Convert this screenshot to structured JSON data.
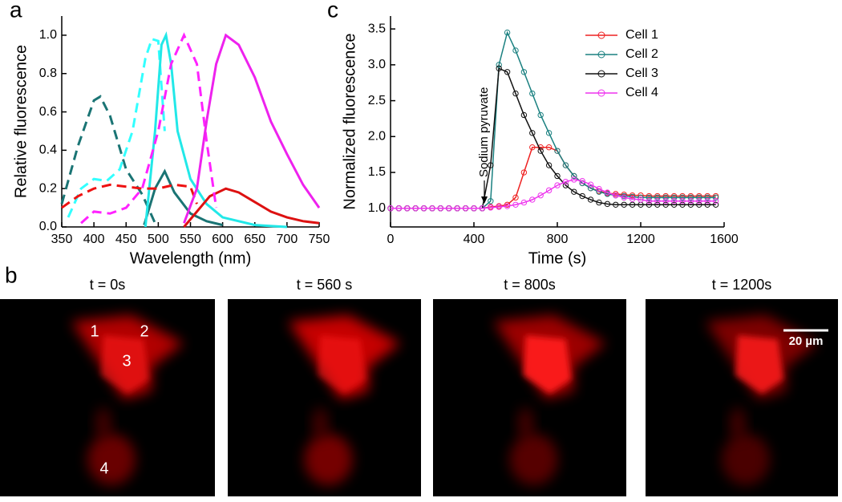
{
  "panel_labels": [
    "a",
    "b",
    "c"
  ],
  "chart_data": [
    {
      "type": "line",
      "xlabel": "Wavelength (nm)",
      "ylabel": "Relative fluorescence",
      "xlim": [
        350,
        750
      ],
      "ylim": [
        0,
        1.1
      ],
      "xticks": [
        350,
        400,
        450,
        500,
        550,
        600,
        650,
        700,
        750
      ],
      "yticks": [
        {
          "value": 0,
          "label": "0.0"
        },
        0.2,
        0.4,
        0.6,
        0.8,
        {
          "value": 1,
          "label": "1.0"
        }
      ],
      "series": [
        {
          "color": "#1a7474",
          "dashed": true,
          "x": [
            350,
            375,
            400,
            410,
            425,
            450,
            475,
            495
          ],
          "values": [
            0.12,
            0.42,
            0.66,
            0.68,
            0.58,
            0.3,
            0.17,
            0.02
          ]
        },
        {
          "color": "#1a7474",
          "dashed": false,
          "x": [
            478,
            495,
            510,
            525,
            550,
            575,
            600
          ],
          "values": [
            0.01,
            0.2,
            0.29,
            0.18,
            0.07,
            0.03,
            0.01
          ]
        },
        {
          "color": "#33ffff",
          "dashed": true,
          "x": [
            360,
            380,
            400,
            420,
            440,
            460,
            480,
            490,
            500,
            510
          ],
          "values": [
            0.05,
            0.2,
            0.25,
            0.24,
            0.3,
            0.5,
            0.88,
            0.98,
            0.97,
            0.5
          ]
        },
        {
          "color": "#22e8e8",
          "dashed": false,
          "x": [
            480,
            495,
            505,
            512,
            520,
            530,
            550,
            575,
            600,
            650,
            700
          ],
          "values": [
            0,
            0.5,
            0.95,
            1.0,
            0.85,
            0.5,
            0.25,
            0.12,
            0.05,
            0.01,
            0
          ]
        },
        {
          "color": "#ee1111",
          "dashed": true,
          "x": [
            350,
            375,
            400,
            425,
            450,
            475,
            500,
            525,
            550,
            560
          ],
          "values": [
            0.1,
            0.16,
            0.2,
            0.22,
            0.21,
            0.2,
            0.2,
            0.22,
            0.21,
            0.12
          ]
        },
        {
          "color": "#dd1111",
          "dashed": false,
          "x": [
            540,
            560,
            580,
            605,
            625,
            650,
            675,
            700,
            725,
            750
          ],
          "values": [
            0,
            0.08,
            0.16,
            0.2,
            0.18,
            0.13,
            0.08,
            0.05,
            0.03,
            0.02
          ]
        },
        {
          "color": "#ff22ff",
          "dashed": true,
          "x": [
            380,
            400,
            425,
            450,
            475,
            500,
            520,
            540,
            560,
            575,
            590
          ],
          "values": [
            0.02,
            0.08,
            0.07,
            0.1,
            0.2,
            0.5,
            0.85,
            1.0,
            0.85,
            0.45,
            0.1
          ]
        },
        {
          "color": "#ee22ee",
          "dashed": false,
          "x": [
            540,
            560,
            575,
            590,
            605,
            625,
            650,
            675,
            700,
            725,
            750
          ],
          "values": [
            0.02,
            0.2,
            0.55,
            0.85,
            1.0,
            0.95,
            0.78,
            0.55,
            0.38,
            0.22,
            0.1
          ]
        }
      ]
    },
    {
      "type": "line",
      "xlabel": "Time (s)",
      "ylabel": "Normalized fluorescence",
      "xlim": [
        0,
        1600
      ],
      "ylim": [
        0.74,
        3.68
      ],
      "xticks": [
        0,
        400,
        800,
        1200,
        1600
      ],
      "yticks": [
        {
          "value": 1,
          "label": "1.0"
        },
        1.5,
        {
          "value": 2,
          "label": "2.0"
        },
        2.5,
        {
          "value": 3,
          "label": "3.0"
        },
        3.5
      ],
      "annotation": {
        "text": "Sodium pyruvate",
        "x": 450,
        "y": 1.03
      },
      "x": [
        0,
        40,
        80,
        120,
        160,
        200,
        240,
        280,
        320,
        360,
        400,
        440,
        480,
        520,
        560,
        600,
        640,
        680,
        720,
        760,
        800,
        840,
        880,
        920,
        960,
        1000,
        1040,
        1080,
        1120,
        1160,
        1200,
        1240,
        1280,
        1320,
        1360,
        1400,
        1440,
        1480,
        1520,
        1560
      ],
      "series": [
        {
          "name": "Cell 1",
          "color": "#ee2222",
          "values": [
            1,
            1,
            1,
            1,
            1,
            1,
            1,
            1,
            1,
            1,
            1,
            1,
            1.02,
            1.03,
            1.05,
            1.15,
            1.5,
            1.85,
            1.85,
            1.85,
            1.8,
            1.6,
            1.45,
            1.35,
            1.28,
            1.24,
            1.21,
            1.2,
            1.19,
            1.18,
            1.18,
            1.17,
            1.17,
            1.17,
            1.17,
            1.17,
            1.17,
            1.17,
            1.17,
            1.17
          ]
        },
        {
          "name": "Cell 2",
          "color": "#1a8080",
          "values": [
            1,
            1,
            1,
            1,
            1,
            1,
            1,
            1,
            1,
            1,
            1,
            1,
            1.1,
            3.0,
            3.45,
            3.2,
            2.9,
            2.6,
            2.3,
            2.05,
            1.8,
            1.6,
            1.45,
            1.35,
            1.28,
            1.23,
            1.2,
            1.18,
            1.17,
            1.16,
            1.15,
            1.15,
            1.15,
            1.15,
            1.15,
            1.15,
            1.15,
            1.15,
            1.15,
            1.15
          ]
        },
        {
          "name": "Cell 3",
          "color": "#111111",
          "values": [
            1,
            1,
            1,
            1,
            1,
            1,
            1,
            1,
            1,
            1,
            1,
            1,
            1.6,
            2.95,
            2.9,
            2.6,
            2.3,
            2.05,
            1.8,
            1.6,
            1.45,
            1.32,
            1.23,
            1.17,
            1.12,
            1.08,
            1.06,
            1.05,
            1.05,
            1.05,
            1.05,
            1.05,
            1.05,
            1.05,
            1.05,
            1.05,
            1.05,
            1.05,
            1.05,
            1.05
          ]
        },
        {
          "name": "Cell 4",
          "color": "#ee33ee",
          "values": [
            1,
            1,
            1,
            1,
            1,
            1,
            1,
            1,
            1,
            1,
            1,
            1,
            1.01,
            1.02,
            1.03,
            1.05,
            1.08,
            1.12,
            1.18,
            1.25,
            1.32,
            1.37,
            1.4,
            1.38,
            1.33,
            1.27,
            1.22,
            1.18,
            1.15,
            1.13,
            1.12,
            1.1,
            1.1,
            1.1,
            1.1,
            1.1,
            1.1,
            1.1,
            1.1,
            1.1
          ]
        }
      ]
    }
  ],
  "images": [
    {
      "title": "t = 0s"
    },
    {
      "title": "t = 560 s"
    },
    {
      "title": "t = 800s"
    },
    {
      "title": "t = 1200s"
    }
  ],
  "cell_labels": [
    "1",
    "2",
    "3",
    "4"
  ],
  "scale_bar": "20 µm"
}
